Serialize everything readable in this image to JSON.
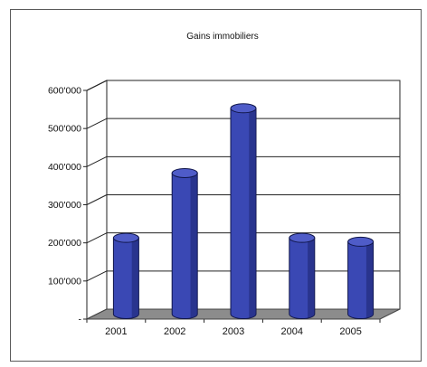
{
  "chart_data": {
    "type": "bar",
    "title": "Gains immobiliers",
    "xlabel": "",
    "ylabel": "",
    "categories": [
      "2001",
      "2002",
      "2003",
      "2004",
      "2005"
    ],
    "values": [
      200000,
      370000,
      540000,
      200000,
      190000
    ],
    "ylim": [
      0,
      600000
    ],
    "yticks": [
      {
        "value": 0,
        "label": "-"
      },
      {
        "value": 100000,
        "label": "100'000"
      },
      {
        "value": 200000,
        "label": "200'000"
      },
      {
        "value": 300000,
        "label": "300'000"
      },
      {
        "value": 400000,
        "label": "400'000"
      },
      {
        "value": 500000,
        "label": "500'000"
      },
      {
        "value": 600000,
        "label": "600'000"
      }
    ],
    "style": "3d-cylinder",
    "grid": true,
    "legend": "none",
    "colors": {
      "bar": "#3a48b4",
      "bar_dark": "#1c2470",
      "bar_top": "#4f5cc8",
      "floor": "#8c8c8c",
      "grid": "#222222"
    }
  }
}
